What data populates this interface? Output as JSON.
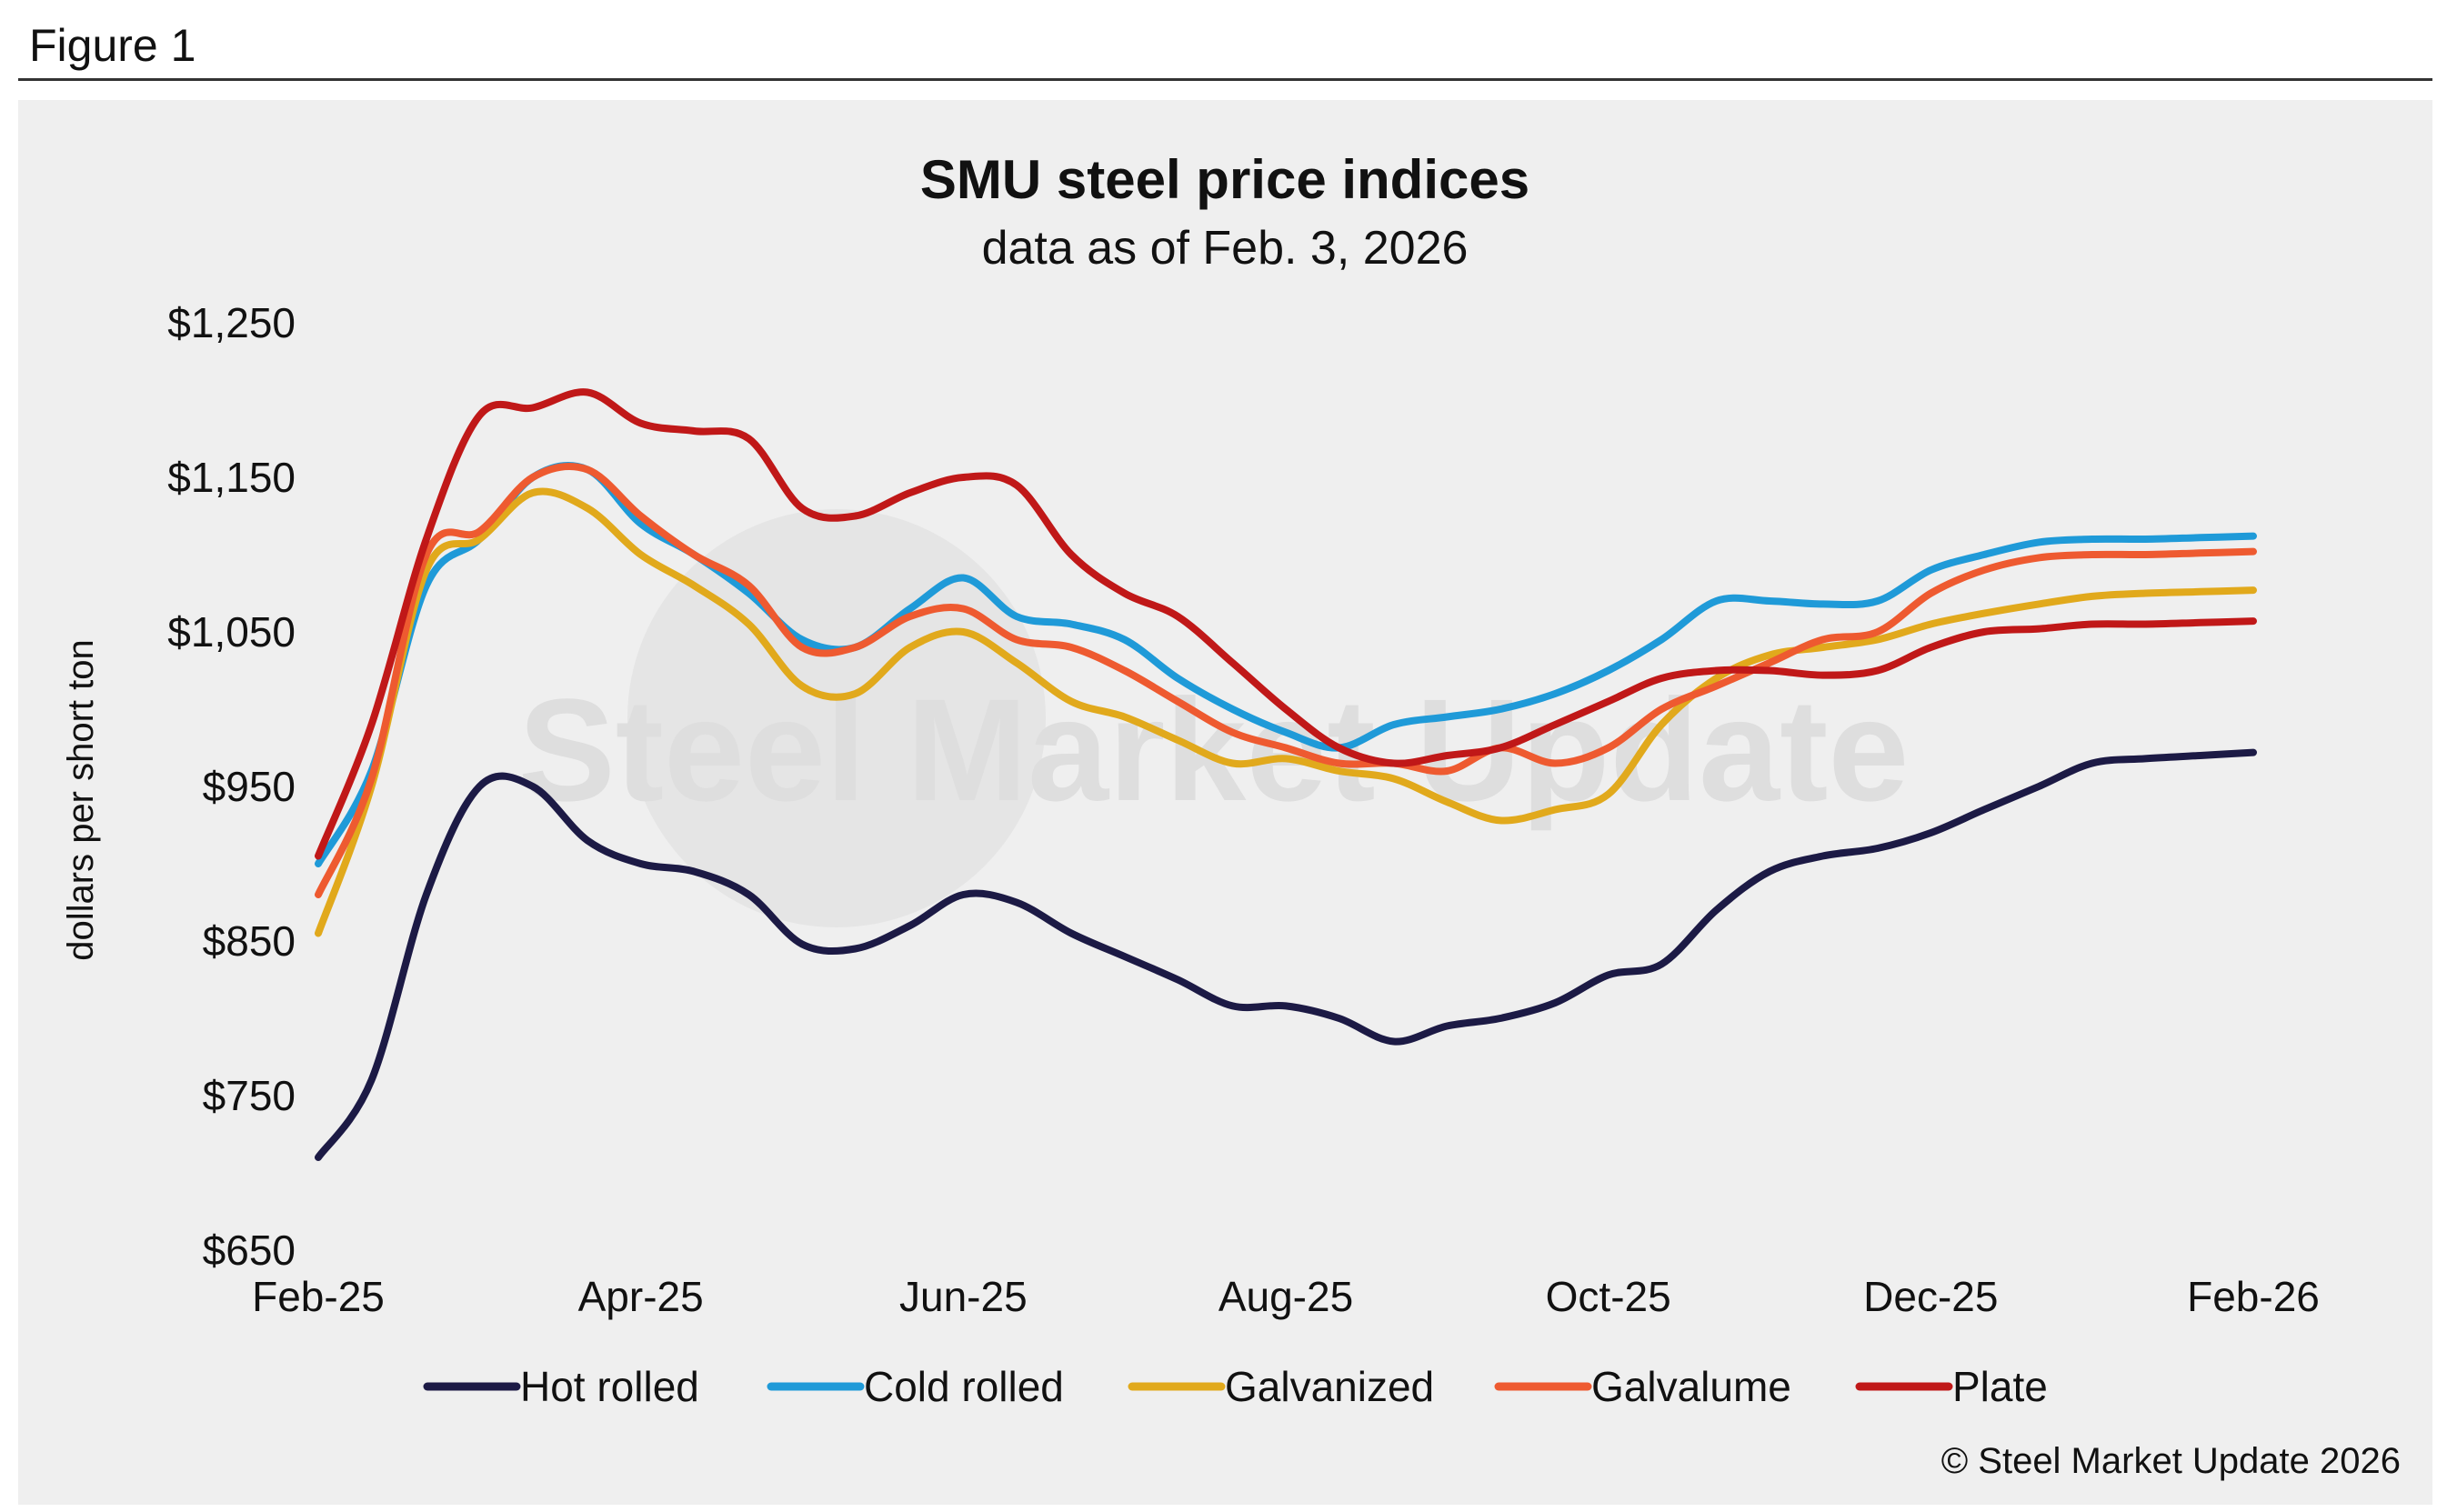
{
  "figure_label": "Figure 1",
  "copyright": "© Steel Market Update 2026",
  "watermark": "Steel Market Update",
  "chart_data": {
    "type": "line",
    "title": "SMU steel price indices",
    "subtitle": "data as of Feb. 3, 2026",
    "ylabel": "dollars per short ton",
    "xlabel": "",
    "ylim": [
      650,
      1250
    ],
    "yticks": [
      650,
      750,
      850,
      950,
      1050,
      1150,
      1250
    ],
    "ytick_labels": [
      "$650",
      "$750",
      "$850",
      "$950",
      "$1,050",
      "$1,150",
      "$1,250"
    ],
    "xlim": [
      0,
      12
    ],
    "xticks": [
      0,
      2,
      4,
      6,
      8,
      10,
      12
    ],
    "xtick_labels": [
      "Feb-25",
      "Apr-25",
      "Jun-25",
      "Aug-25",
      "Oct-25",
      "Dec-25",
      "Feb-26"
    ],
    "grid": false,
    "legend_position": "bottom",
    "x": [
      0,
      0.33,
      0.67,
      1.0,
      1.33,
      1.67,
      2.0,
      2.33,
      2.67,
      3.0,
      3.33,
      3.67,
      4.0,
      4.33,
      4.67,
      5.0,
      5.33,
      5.67,
      6.0,
      6.33,
      6.67,
      7.0,
      7.33,
      7.67,
      8.0,
      8.33,
      8.67,
      9.0,
      9.33,
      9.67,
      10.0,
      10.33,
      10.67,
      11.0,
      11.33,
      11.67,
      12.0
    ],
    "series": [
      {
        "name": "Hot rolled",
        "color": "#1c1a45",
        "values": [
          710,
          760,
          880,
          950,
          950,
          915,
          900,
          895,
          880,
          848,
          845,
          860,
          880,
          875,
          855,
          840,
          825,
          808,
          808,
          800,
          785,
          795,
          800,
          810,
          828,
          835,
          870,
          895,
          905,
          910,
          920,
          935,
          950,
          965,
          968,
          970,
          972
        ]
      },
      {
        "name": "Cold rolled",
        "color": "#1f9ad8",
        "values": [
          900,
          960,
          1080,
          1110,
          1150,
          1155,
          1120,
          1100,
          1075,
          1045,
          1040,
          1065,
          1085,
          1060,
          1055,
          1045,
          1020,
          1000,
          985,
          975,
          990,
          995,
          1000,
          1010,
          1025,
          1045,
          1070,
          1070,
          1068,
          1070,
          1090,
          1100,
          1108,
          1110,
          1110,
          1111,
          1112
        ]
      },
      {
        "name": "Galvanized",
        "color": "#e1a91c",
        "values": [
          855,
          950,
          1090,
          1110,
          1140,
          1130,
          1100,
          1080,
          1055,
          1015,
          1010,
          1040,
          1050,
          1030,
          1005,
          995,
          980,
          965,
          968,
          960,
          955,
          940,
          928,
          935,
          945,
          990,
          1020,
          1035,
          1040,
          1045,
          1055,
          1062,
          1068,
          1073,
          1075,
          1076,
          1077
        ]
      },
      {
        "name": "Galvalume",
        "color": "#ee5a30",
        "values": [
          880,
          955,
          1100,
          1115,
          1150,
          1155,
          1125,
          1100,
          1080,
          1040,
          1040,
          1060,
          1065,
          1045,
          1040,
          1025,
          1005,
          985,
          975,
          965,
          965,
          960,
          975,
          965,
          975,
          1000,
          1015,
          1030,
          1045,
          1050,
          1075,
          1090,
          1098,
          1100,
          1100,
          1101,
          1102
        ]
      },
      {
        "name": "Plate",
        "color": "#c01818",
        "values": [
          905,
          990,
          1110,
          1190,
          1195,
          1205,
          1185,
          1180,
          1175,
          1130,
          1125,
          1140,
          1150,
          1145,
          1100,
          1075,
          1060,
          1030,
          1000,
          975,
          965,
          970,
          975,
          990,
          1005,
          1020,
          1025,
          1025,
          1022,
          1025,
          1040,
          1050,
          1052,
          1055,
          1055,
          1056,
          1057
        ]
      }
    ]
  }
}
